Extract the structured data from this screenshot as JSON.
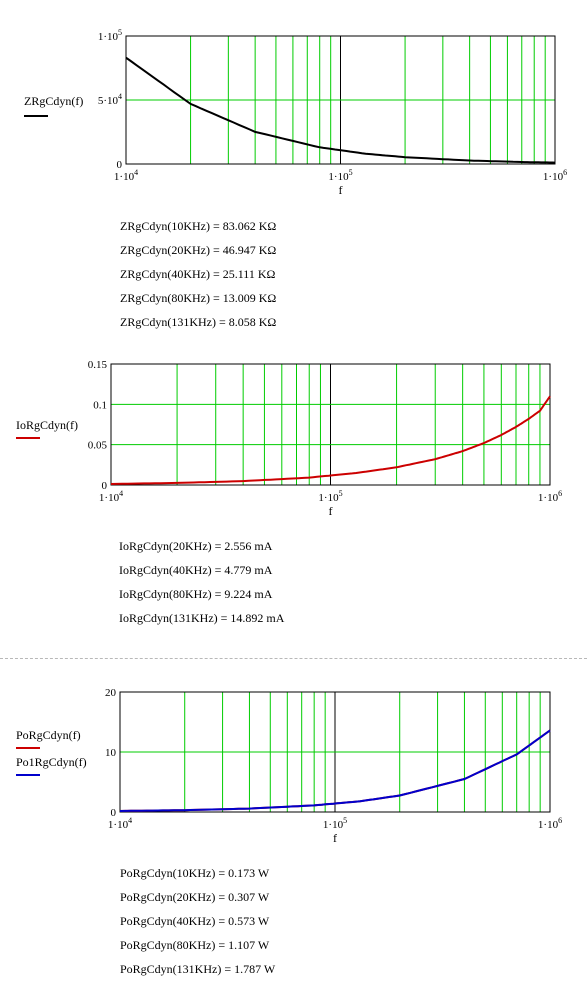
{
  "chart_data": [
    {
      "type": "line",
      "xscale": "log",
      "xlim": [
        10000,
        1000000
      ],
      "ylim": [
        0,
        100000
      ],
      "grid": true,
      "xlabel": "f",
      "xticks": [
        {
          "mant": "1·10",
          "exp": "4"
        },
        {
          "mant": "1·10",
          "exp": "5"
        },
        {
          "mant": "1·10",
          "exp": "6"
        }
      ],
      "yticks": [
        {
          "value": 0,
          "mant": "0",
          "exp": ""
        },
        {
          "value": 50000,
          "mant": "5·10",
          "exp": "4"
        },
        {
          "value": 100000,
          "mant": "1·10",
          "exp": "5"
        }
      ],
      "series": [
        {
          "name": "ZRgCdyn(f)",
          "color": "#000000",
          "x": [
            10000,
            20000,
            40000,
            80000,
            131000,
            200000,
            400000,
            700000,
            1000000
          ],
          "y": [
            83062,
            46947,
            25111,
            13009,
            8058,
            5300,
            2700,
            1550,
            1100
          ]
        }
      ]
    },
    {
      "type": "line",
      "xscale": "log",
      "xlim": [
        10000,
        1000000
      ],
      "ylim": [
        0,
        0.15
      ],
      "grid": true,
      "xlabel": "f",
      "xticks": [
        {
          "mant": "1·10",
          "exp": "4"
        },
        {
          "mant": "1·10",
          "exp": "5"
        },
        {
          "mant": "1·10",
          "exp": "6"
        }
      ],
      "yticks": [
        {
          "value": 0,
          "mant": "0",
          "exp": ""
        },
        {
          "value": 0.05,
          "mant": "0.05",
          "exp": ""
        },
        {
          "value": 0.1,
          "mant": "0.1",
          "exp": ""
        },
        {
          "value": 0.15,
          "mant": "0.15",
          "exp": ""
        }
      ],
      "series": [
        {
          "name": "IoRgCdyn(f)",
          "color": "#cc0000",
          "x": [
            10000,
            20000,
            40000,
            80000,
            131000,
            200000,
            300000,
            400000,
            500000,
            600000,
            700000,
            800000,
            900000,
            1000000
          ],
          "y": [
            0.0013,
            0.002556,
            0.004779,
            0.009224,
            0.014892,
            0.022,
            0.032,
            0.042,
            0.052,
            0.062,
            0.072,
            0.082,
            0.092,
            0.11
          ]
        }
      ]
    },
    {
      "type": "line",
      "xscale": "log",
      "xlim": [
        10000,
        1000000
      ],
      "ylim": [
        0,
        20
      ],
      "grid": true,
      "xlabel": "f",
      "xticks": [
        {
          "mant": "1·10",
          "exp": "4"
        },
        {
          "mant": "1·10",
          "exp": "5"
        },
        {
          "mant": "1·10",
          "exp": "6"
        }
      ],
      "yticks": [
        {
          "value": 0,
          "mant": "0",
          "exp": ""
        },
        {
          "value": 10,
          "mant": "10",
          "exp": ""
        },
        {
          "value": 20,
          "mant": "20",
          "exp": ""
        }
      ],
      "series": [
        {
          "name": "PoRgCdyn(f)",
          "color": "#cc0000",
          "x": [
            10000,
            20000,
            40000,
            80000,
            131000,
            200000,
            400000,
            700000,
            1000000
          ],
          "y": [
            0.173,
            0.307,
            0.573,
            1.107,
            1.787,
            2.75,
            5.5,
            9.6,
            13.6
          ]
        },
        {
          "name": "Po1RgCdyn(f)",
          "color": "#0000cc",
          "x": [
            10000,
            20000,
            40000,
            80000,
            131000,
            200000,
            400000,
            700000,
            1000000
          ],
          "y": [
            0.173,
            0.307,
            0.573,
            1.107,
            1.787,
            2.75,
            5.5,
            9.6,
            13.6
          ]
        }
      ]
    }
  ],
  "results": {
    "z": [
      "ZRgCdyn(10KHz) = 83.062 KΩ",
      "ZRgCdyn(20KHz) = 46.947 KΩ",
      "ZRgCdyn(40KHz) = 25.111 KΩ",
      "ZRgCdyn(80KHz) = 13.009 KΩ",
      "ZRgCdyn(131KHz) = 8.058 KΩ"
    ],
    "io": [
      "IoRgCdyn(20KHz) = 2.556 mA",
      "IoRgCdyn(40KHz) = 4.779 mA",
      "IoRgCdyn(80KHz) = 9.224 mA",
      "IoRgCdyn(131KHz) = 14.892 mA"
    ],
    "po": [
      "PoRgCdyn(10KHz) = 0.173 W",
      "PoRgCdyn(20KHz) = 0.307 W",
      "PoRgCdyn(40KHz) = 0.573 W",
      "PoRgCdyn(80KHz) = 1.107 W",
      "PoRgCdyn(131KHz) = 1.787 W"
    ]
  }
}
